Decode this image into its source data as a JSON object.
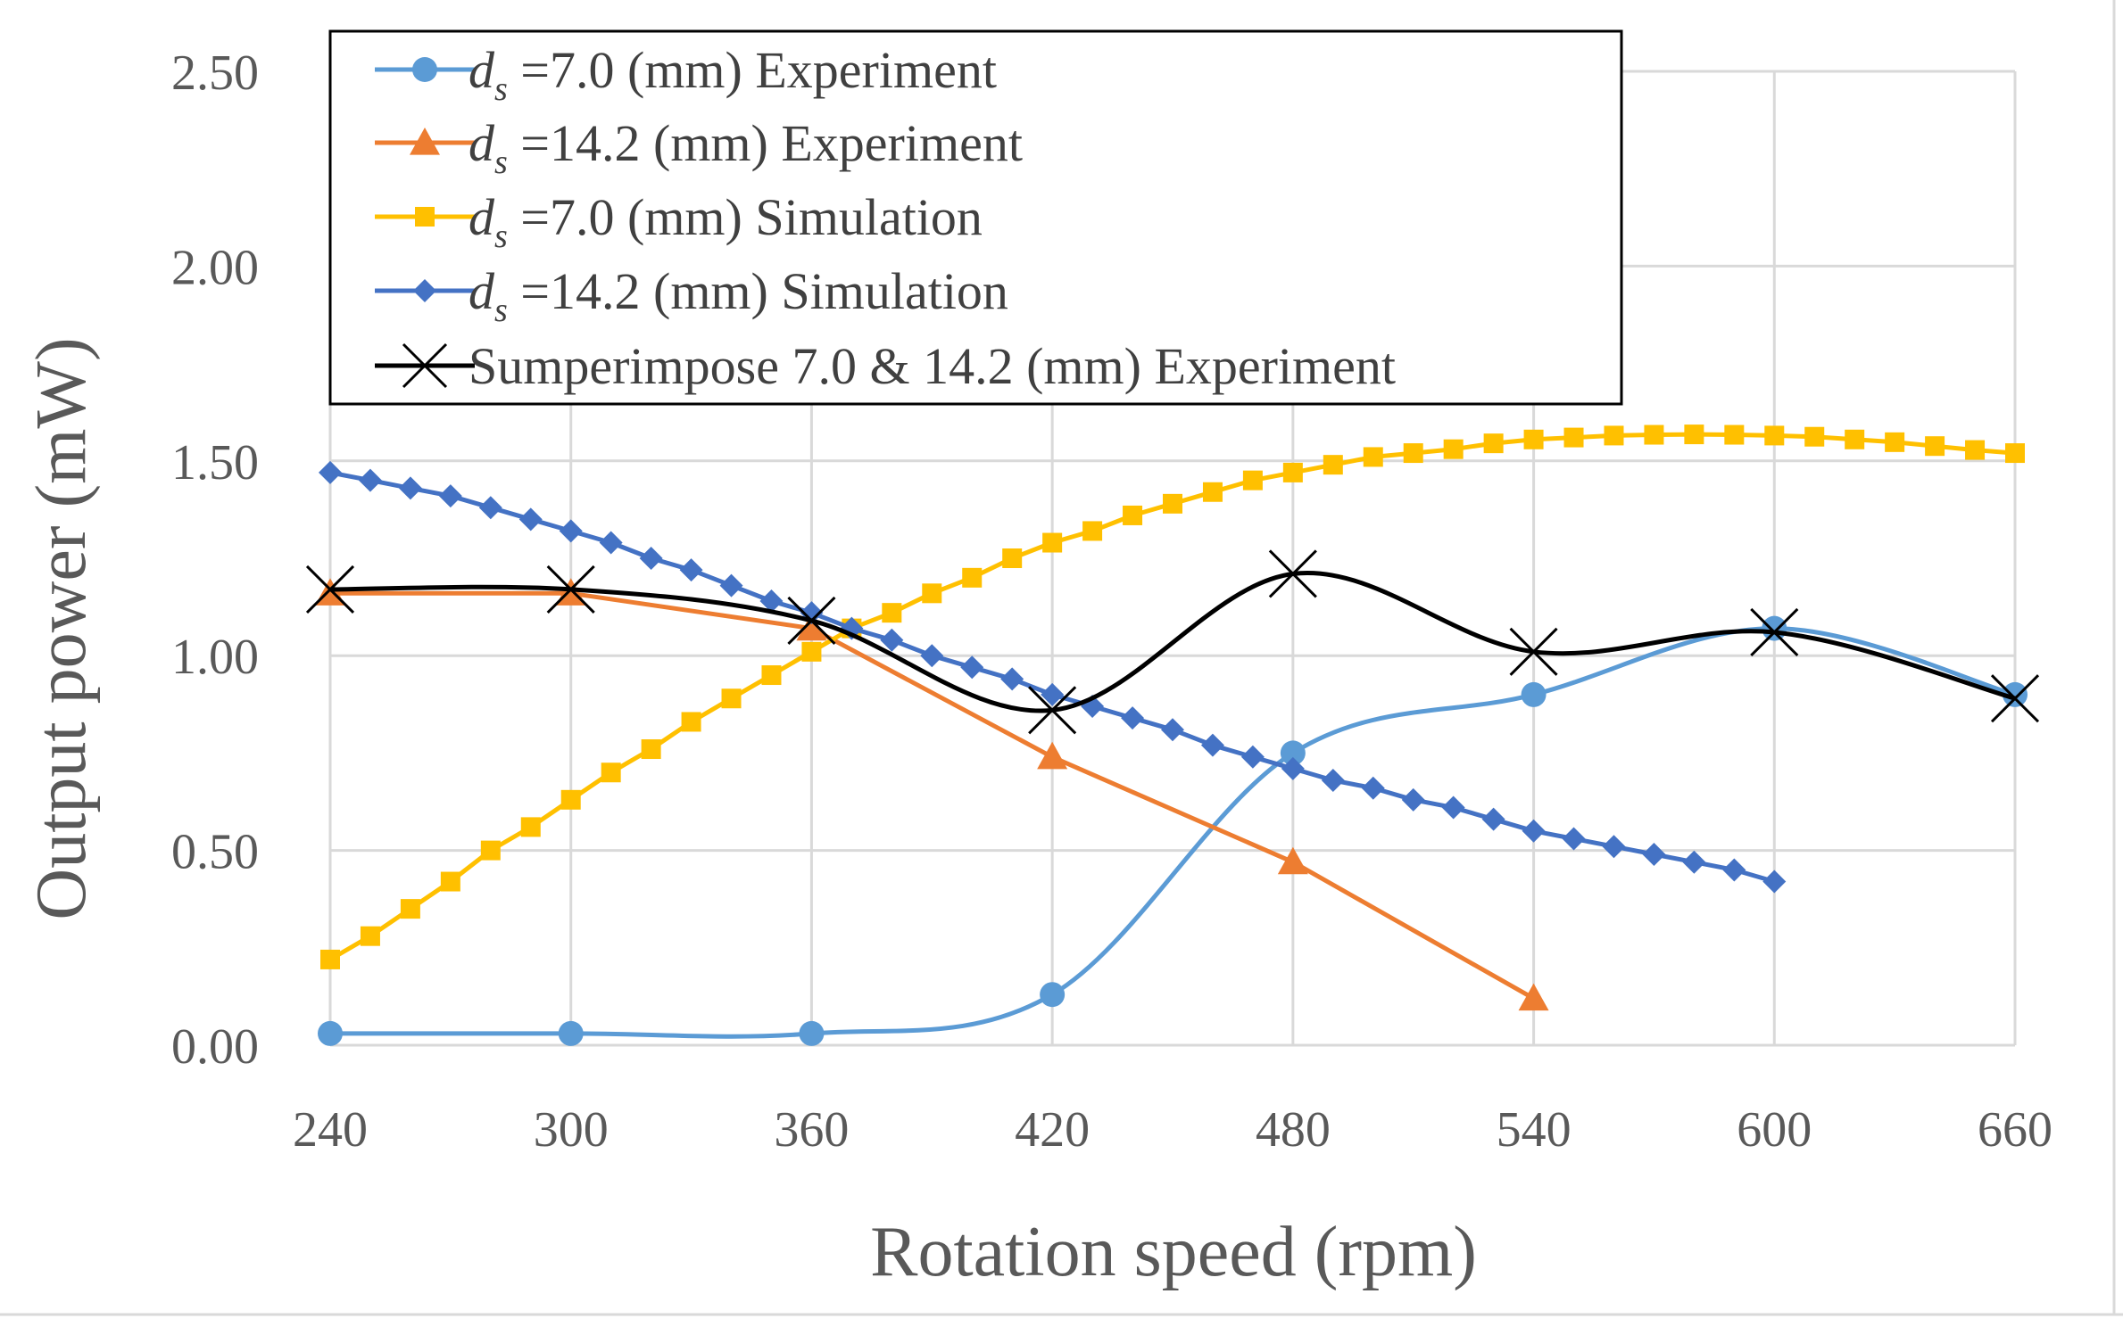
{
  "chart_data": {
    "type": "line",
    "xlabel": "Rotation speed (rpm)",
    "ylabel": "Output power (mW)",
    "xlim": [
      240,
      660
    ],
    "ylim": [
      0,
      2.5
    ],
    "xticks": [
      240,
      300,
      360,
      420,
      480,
      540,
      600,
      660
    ],
    "xtick_labels": [
      "240",
      "300",
      "360",
      "420",
      "480",
      "540",
      "600",
      "660"
    ],
    "yticks": [
      0,
      0.5,
      1.0,
      1.5,
      2.0,
      2.5
    ],
    "ytick_labels": [
      "0.00",
      "0.50",
      "1.00",
      "1.50",
      "2.00",
      "2.50"
    ],
    "grid": true,
    "legend_position": "top-left",
    "series": [
      {
        "name_var": "d",
        "name_sub": "s",
        "name_rest": "=7.0 (mm) Experiment",
        "color": "#5B9BD5",
        "marker": "circle",
        "smooth": true,
        "x": [
          240,
          300,
          360,
          420,
          480,
          540,
          600,
          660
        ],
        "y": [
          0.03,
          0.03,
          0.03,
          0.13,
          0.75,
          0.9,
          1.07,
          0.9
        ]
      },
      {
        "name_var": "d",
        "name_sub": "s",
        "name_rest": "=14.2 (mm) Experiment",
        "color": "#ED7D31",
        "marker": "triangle",
        "smooth": false,
        "x": [
          240,
          300,
          360,
          420,
          480,
          540
        ],
        "y": [
          1.16,
          1.16,
          1.07,
          0.74,
          0.47,
          0.12
        ]
      },
      {
        "name_var": "d",
        "name_sub": "s",
        "name_rest": "=7.0 (mm) Simulation",
        "color": "#FFC000",
        "marker": "square",
        "smooth": false,
        "x": [
          240,
          250,
          260,
          270,
          280,
          290,
          300,
          310,
          320,
          330,
          340,
          350,
          360,
          370,
          380,
          390,
          400,
          410,
          420,
          430,
          440,
          450,
          460,
          470,
          480,
          490,
          500,
          510,
          520,
          530,
          540,
          550,
          560,
          570,
          580,
          590,
          600,
          610,
          620,
          630,
          640,
          650,
          660
        ],
        "y": [
          0.22,
          0.28,
          0.35,
          0.42,
          0.5,
          0.56,
          0.63,
          0.7,
          0.76,
          0.83,
          0.89,
          0.95,
          1.01,
          1.07,
          1.11,
          1.16,
          1.2,
          1.25,
          1.29,
          1.32,
          1.36,
          1.39,
          1.42,
          1.45,
          1.47,
          1.49,
          1.51,
          1.52,
          1.53,
          1.545,
          1.555,
          1.56,
          1.565,
          1.567,
          1.568,
          1.567,
          1.565,
          1.562,
          1.555,
          1.548,
          1.538,
          1.528,
          1.52
        ]
      },
      {
        "name_var": "d",
        "name_sub": "s",
        "name_rest": "=14.2 (mm) Simulation",
        "color": "#4472C4",
        "marker": "diamond",
        "smooth": false,
        "x": [
          240,
          250,
          260,
          270,
          280,
          290,
          300,
          310,
          320,
          330,
          340,
          350,
          360,
          370,
          380,
          390,
          400,
          410,
          420,
          430,
          440,
          450,
          460,
          470,
          480,
          490,
          500,
          510,
          520,
          530,
          540,
          550,
          560,
          570,
          580,
          590,
          600
        ],
        "y": [
          1.47,
          1.45,
          1.43,
          1.41,
          1.38,
          1.35,
          1.32,
          1.29,
          1.25,
          1.22,
          1.18,
          1.14,
          1.11,
          1.07,
          1.04,
          1.0,
          0.97,
          0.94,
          0.9,
          0.87,
          0.84,
          0.81,
          0.77,
          0.74,
          0.71,
          0.68,
          0.66,
          0.63,
          0.61,
          0.58,
          0.55,
          0.53,
          0.51,
          0.49,
          0.47,
          0.45,
          0.42
        ]
      },
      {
        "name_var": "",
        "name_sub": "",
        "name_rest": "Sumperimpose 7.0 & 14.2 (mm) Experiment",
        "color": "#000000",
        "marker": "x",
        "smooth": true,
        "x": [
          240,
          300,
          360,
          420,
          480,
          540,
          600,
          660
        ],
        "y": [
          1.17,
          1.17,
          1.09,
          0.86,
          1.21,
          1.01,
          1.06,
          0.89
        ]
      }
    ]
  }
}
